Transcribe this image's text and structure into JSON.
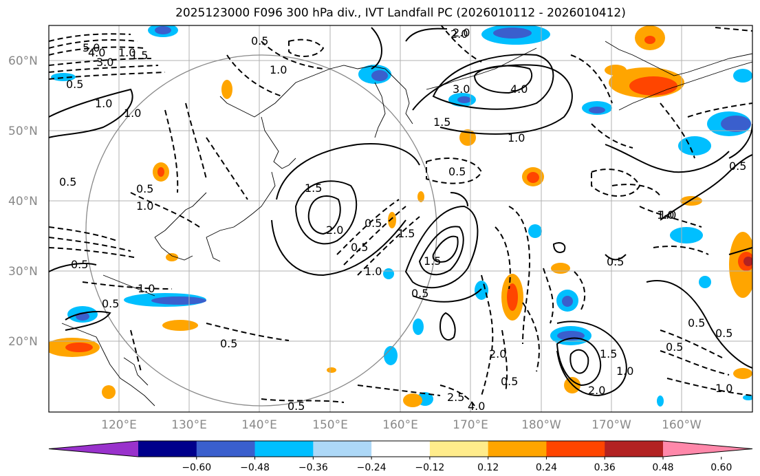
{
  "title": "2025123000 F096 300 hPa div., IVT Landfall PC (2026010112 - 2026010412)",
  "lat_labels": [
    "60°N",
    "50°N",
    "40°N",
    "30°N",
    "20°N"
  ],
  "lon_labels": [
    "120°E",
    "130°E",
    "140°E",
    "150°E",
    "160°E",
    "170°E",
    "180°W",
    "170°W",
    "160°W"
  ],
  "colorbar": {
    "ticks": [
      "−0.60",
      "−0.48",
      "−0.36",
      "−0.24",
      "−0.12",
      "0.12",
      "0.24",
      "0.36",
      "0.48",
      "0.60"
    ],
    "colors": [
      "#9932cc",
      "#00008b",
      "#3a5fcd",
      "#00bfff",
      "#add8f7",
      "#ffffff",
      "#ffec8b",
      "#ffa500",
      "#ff4500",
      "#b22222",
      "#ff88aa"
    ]
  },
  "contour_labels": {
    "top": [
      "5.0",
      "4.0",
      "3.0",
      "2.0",
      "1.5",
      "1.0",
      "0.5",
      "0.5",
      "0.5",
      "2.0",
      "3.0",
      "4.0",
      "1.5",
      "1.0",
      "1.0"
    ],
    "mid": [
      "1.0",
      "1.0",
      "0.5",
      "0.5",
      "1.0",
      "1.5",
      "2.0",
      "0.5",
      "1.5",
      "1.0",
      "1.5",
      "0.5",
      "0.5",
      "0.5",
      "1.0",
      "0.5",
      "0.5"
    ],
    "low": [
      "0.5",
      "1.0",
      "0.5",
      "0.5",
      "0.5",
      "2.0",
      "1.5",
      "1.0",
      "2.0",
      "0.5",
      "1.0",
      "0.5",
      "1.0",
      "2.5",
      "4.0",
      "0.5"
    ]
  }
}
